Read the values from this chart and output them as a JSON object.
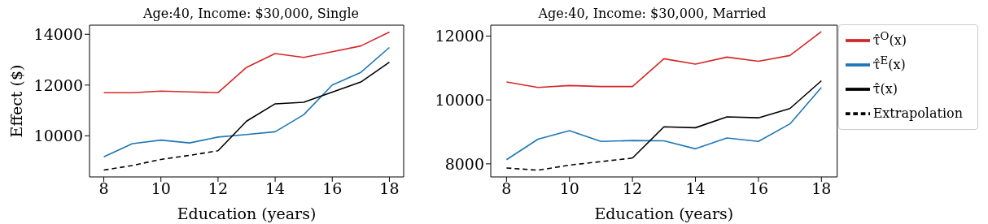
{
  "chart_data": [
    {
      "type": "line",
      "title": "Age:40, Income: $30,000, Single",
      "xlabel": "Education (years)",
      "ylabel": "Effect ($)",
      "x": [
        8,
        9,
        10,
        11,
        12,
        13,
        14,
        15,
        16,
        17,
        18
      ],
      "xlim": [
        7.5,
        18.5
      ],
      "xticks": [
        8,
        10,
        12,
        14,
        16,
        18
      ],
      "ylim": [
        8380,
        14360
      ],
      "yticks": [
        10000,
        12000,
        14000
      ],
      "grid": false,
      "legend": false,
      "marker": "none",
      "series": [
        {
          "color": "#d62728",
          "line_style": "solid",
          "values": [
            11700,
            11700,
            11760,
            11730,
            11700,
            12700,
            13240,
            13090,
            13310,
            13540,
            14090
          ]
        },
        {
          "color": "#1f77b4",
          "line_style": "solid",
          "values": [
            9170,
            9690,
            9830,
            9720,
            9950,
            10050,
            10160,
            10830,
            12000,
            12500,
            13480
          ]
        },
        {
          "color": "#000000",
          "line_style": "solid",
          "values": [
            null,
            null,
            null,
            null,
            9410,
            10580,
            11260,
            11320,
            11720,
            12120,
            12900
          ]
        },
        {
          "color": "#000000",
          "line_style": "dashed",
          "values": [
            8650,
            8830,
            9070,
            9230,
            9410,
            null,
            null,
            null,
            null,
            null,
            null
          ]
        }
      ]
    },
    {
      "type": "line",
      "title": "Age:40, Income: $30,000, Married",
      "xlabel": "Education (years)",
      "x": [
        8,
        9,
        10,
        11,
        12,
        13,
        14,
        15,
        16,
        17,
        18
      ],
      "xlim": [
        7.5,
        18.5
      ],
      "xticks": [
        8,
        10,
        12,
        14,
        16,
        18
      ],
      "ylim": [
        7590,
        12340
      ],
      "yticks": [
        8000,
        10000,
        12000
      ],
      "grid": false,
      "legend": "right",
      "marker": "none",
      "series": [
        {
          "name": "τ̂$^{O}$(x)",
          "color": "#d62728",
          "line_style": "solid",
          "values": [
            10560,
            10390,
            10450,
            10420,
            10420,
            11290,
            11120,
            11340,
            11210,
            11390,
            12140
          ]
        },
        {
          "name": "τ̂$^{E}$(x)",
          "color": "#1f77b4",
          "line_style": "solid",
          "values": [
            8130,
            8770,
            9040,
            8700,
            8730,
            8720,
            8470,
            8810,
            8700,
            9250,
            10390
          ]
        },
        {
          "name": "τ̂(x)",
          "color": "#000000",
          "line_style": "solid",
          "values": [
            null,
            null,
            null,
            null,
            8180,
            9160,
            9130,
            9470,
            9440,
            9730,
            10600
          ]
        },
        {
          "name": "Extrapolation",
          "color": "#000000",
          "line_style": "dashed",
          "values": [
            7870,
            7800,
            7960,
            8070,
            8180,
            null,
            null,
            null,
            null,
            null,
            null
          ]
        }
      ]
    }
  ]
}
